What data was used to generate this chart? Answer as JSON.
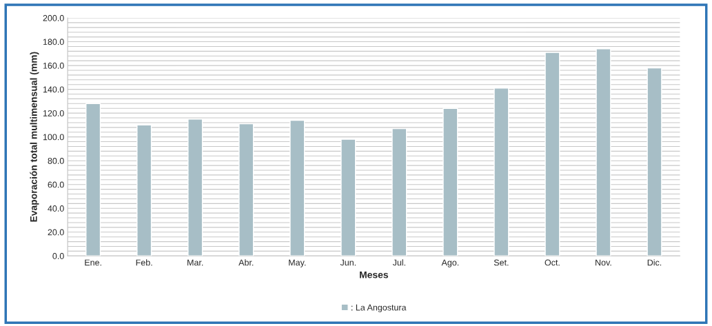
{
  "chart_data": {
    "type": "bar",
    "xlabel": "Meses",
    "ylabel": "Evaporación total multimensual (mm)",
    "categories": [
      "Ene.",
      "Feb.",
      "Mar.",
      "Abr.",
      "May.",
      "Jun.",
      "Jul.",
      "Ago.",
      "Set.",
      "Oct.",
      "Nov.",
      "Dic."
    ],
    "series": [
      {
        "name": ": La Angostura",
        "color": "#a7bec6",
        "values": [
          128,
          110,
          115,
          111,
          114,
          98,
          107,
          124,
          141,
          171,
          174,
          158
        ]
      }
    ],
    "ylim": [
      0,
      200
    ],
    "yticks": [
      {
        "value": 0,
        "label": "0.0"
      },
      {
        "value": 4,
        "label": null
      },
      {
        "value": 8,
        "label": null
      },
      {
        "value": 12,
        "label": null
      },
      {
        "value": 16,
        "label": null
      },
      {
        "value": 20,
        "label": "20.0"
      },
      {
        "value": 24,
        "label": null
      },
      {
        "value": 28,
        "label": null
      },
      {
        "value": 32,
        "label": null
      },
      {
        "value": 36,
        "label": null
      },
      {
        "value": 40,
        "label": "40.0"
      },
      {
        "value": 44,
        "label": null
      },
      {
        "value": 48,
        "label": null
      },
      {
        "value": 52,
        "label": null
      },
      {
        "value": 56,
        "label": null
      },
      {
        "value": 60,
        "label": "60.0"
      },
      {
        "value": 64,
        "label": null
      },
      {
        "value": 68,
        "label": null
      },
      {
        "value": 72,
        "label": null
      },
      {
        "value": 76,
        "label": null
      },
      {
        "value": 80,
        "label": "80.0"
      },
      {
        "value": 84,
        "label": null
      },
      {
        "value": 88,
        "label": null
      },
      {
        "value": 92,
        "label": null
      },
      {
        "value": 96,
        "label": null
      },
      {
        "value": 100,
        "label": "100.0"
      },
      {
        "value": 104,
        "label": null
      },
      {
        "value": 108,
        "label": null
      },
      {
        "value": 112,
        "label": null
      },
      {
        "value": 116,
        "label": null
      },
      {
        "value": 120,
        "label": "120.0"
      },
      {
        "value": 124,
        "label": null
      },
      {
        "value": 128,
        "label": null
      },
      {
        "value": 132,
        "label": null
      },
      {
        "value": 136,
        "label": null
      },
      {
        "value": 140,
        "label": "140.0"
      },
      {
        "value": 144,
        "label": null
      },
      {
        "value": 148,
        "label": null
      },
      {
        "value": 152,
        "label": null
      },
      {
        "value": 156,
        "label": null
      },
      {
        "value": 160,
        "label": "160.0"
      },
      {
        "value": 164,
        "label": null
      },
      {
        "value": 168,
        "label": null
      },
      {
        "value": 172,
        "label": null
      },
      {
        "value": 176,
        "label": null
      },
      {
        "value": 180,
        "label": "180.0"
      },
      {
        "value": 184,
        "label": null
      },
      {
        "value": 188,
        "label": null
      },
      {
        "value": 192,
        "label": null
      },
      {
        "value": 196,
        "label": null
      },
      {
        "value": 200,
        "label": "200.0"
      }
    ],
    "grid": "y",
    "legend": "bottom"
  }
}
